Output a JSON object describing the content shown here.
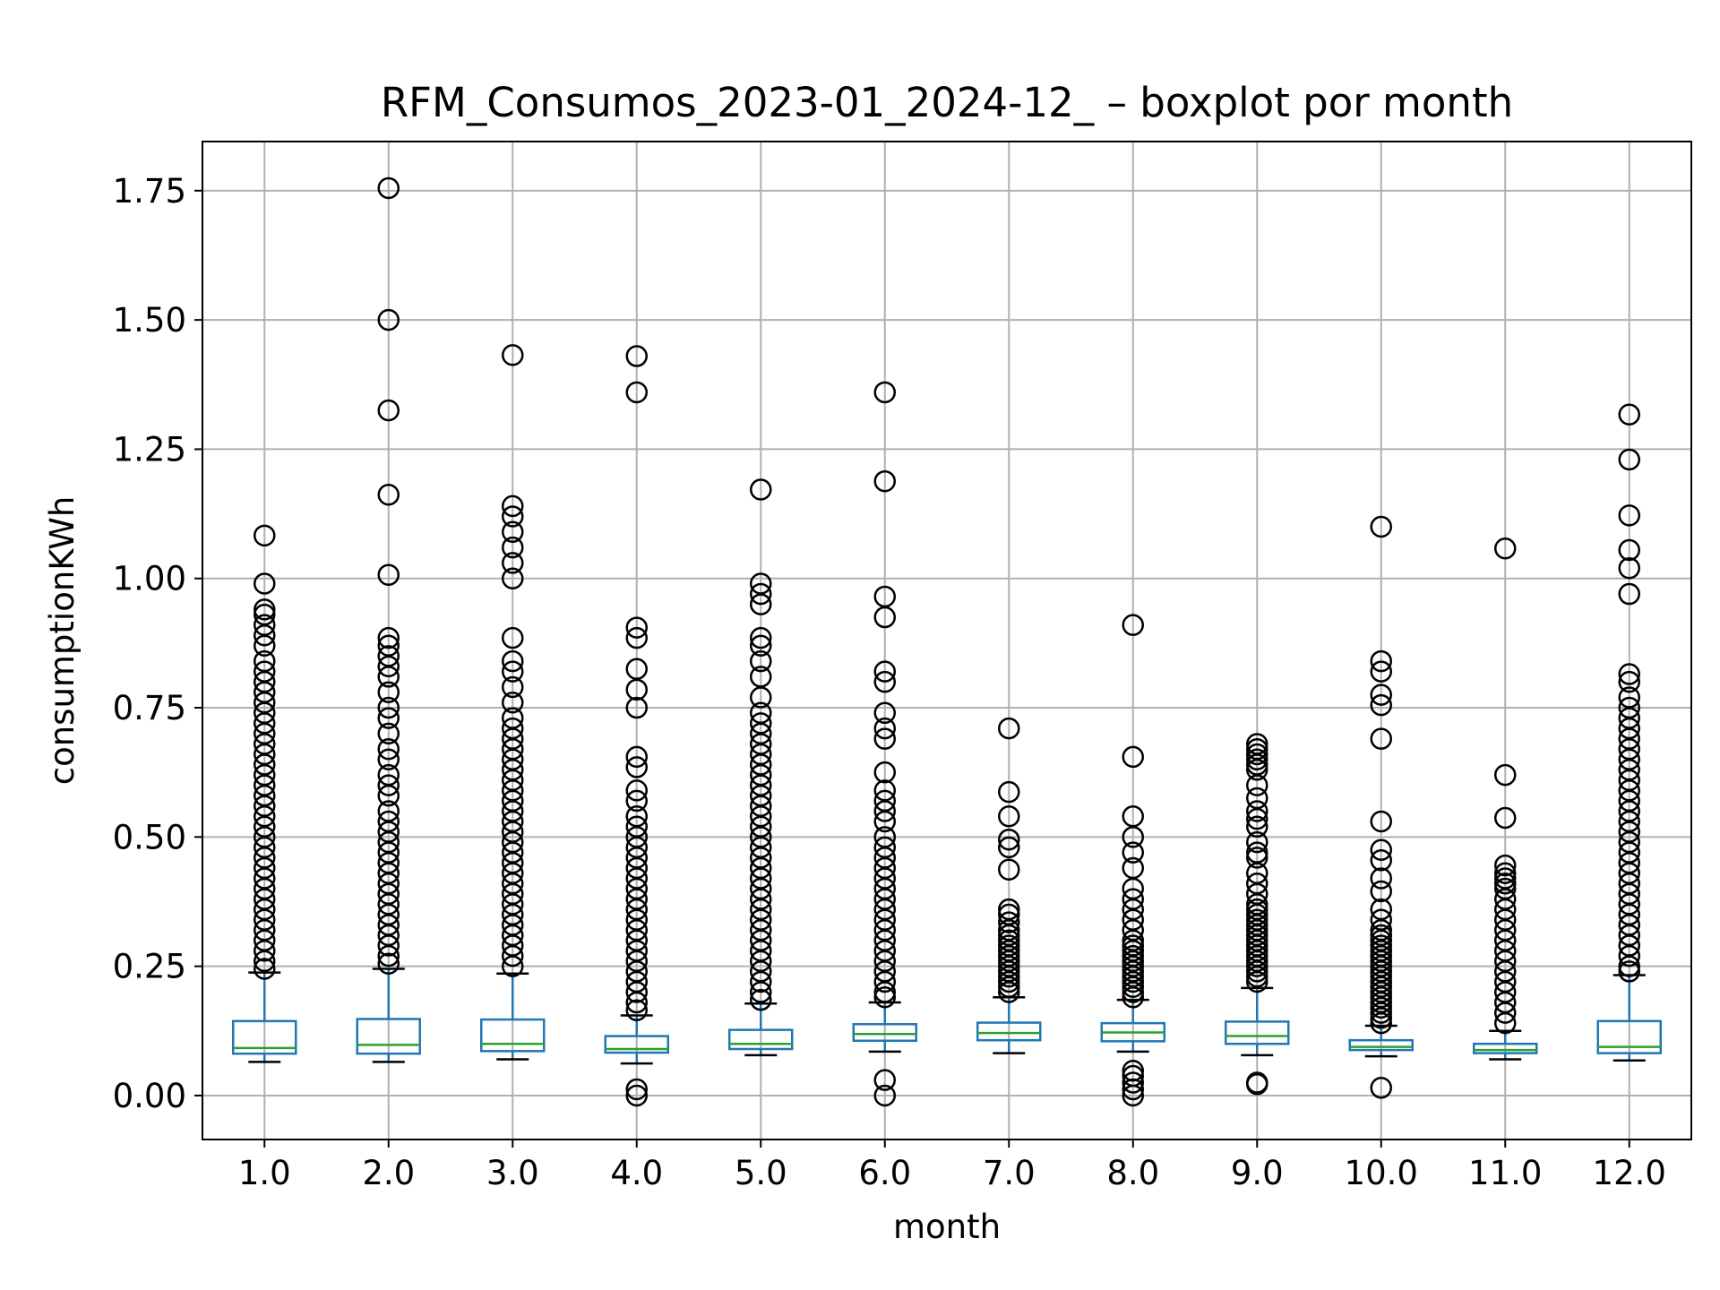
{
  "chart_data": {
    "type": "boxplot",
    "title": "RFM_Consumos_2023-01_2024-12_ – boxplot por month",
    "xlabel": "month",
    "ylabel": "consumptionKWh",
    "categories": [
      "1.0",
      "2.0",
      "3.0",
      "4.0",
      "5.0",
      "6.0",
      "7.0",
      "8.0",
      "9.0",
      "10.0",
      "11.0",
      "12.0"
    ],
    "ylim": [
      -0.085,
      1.845
    ],
    "yticks": [
      0.0,
      0.25,
      0.5,
      0.75,
      1.0,
      1.25,
      1.5,
      1.75
    ],
    "ytick_labels": [
      "0.00",
      "0.25",
      "0.50",
      "0.75",
      "1.00",
      "1.25",
      "1.50",
      "1.75"
    ],
    "grid": true,
    "colors": {
      "box": "#1f77b4",
      "median": "#2ca02c",
      "whisker": "#1f77b4",
      "cap": "#000000",
      "flier": "#000000",
      "grid": "#b0b0b0"
    },
    "boxes": [
      {
        "category": "1.0",
        "whislo": 0.065,
        "q1": 0.081,
        "med": 0.092,
        "q3": 0.144,
        "whishi": 0.238,
        "fliers": [
          1.083,
          0.99,
          0.94,
          0.93,
          0.91,
          0.89,
          0.87,
          0.84,
          0.82,
          0.8,
          0.78,
          0.76,
          0.74,
          0.72,
          0.7,
          0.68,
          0.66,
          0.64,
          0.62,
          0.6,
          0.58,
          0.56,
          0.54,
          0.52,
          0.5,
          0.48,
          0.46,
          0.44,
          0.42,
          0.4,
          0.38,
          0.36,
          0.34,
          0.32,
          0.3,
          0.28,
          0.26,
          0.245
        ]
      },
      {
        "category": "2.0",
        "whislo": 0.065,
        "q1": 0.081,
        "med": 0.098,
        "q3": 0.148,
        "whishi": 0.245,
        "fliers": [
          1.755,
          1.5,
          1.325,
          1.162,
          1.007,
          0.885,
          0.87,
          0.85,
          0.83,
          0.81,
          0.78,
          0.75,
          0.73,
          0.7,
          0.67,
          0.65,
          0.62,
          0.6,
          0.58,
          0.55,
          0.53,
          0.51,
          0.49,
          0.47,
          0.45,
          0.43,
          0.41,
          0.39,
          0.37,
          0.35,
          0.33,
          0.31,
          0.29,
          0.27,
          0.255
        ]
      },
      {
        "category": "3.0",
        "whislo": 0.07,
        "q1": 0.086,
        "med": 0.1,
        "q3": 0.147,
        "whishi": 0.236,
        "fliers": [
          1.432,
          1.14,
          1.12,
          1.09,
          1.06,
          1.03,
          1.0,
          0.885,
          0.84,
          0.82,
          0.79,
          0.76,
          0.73,
          0.71,
          0.69,
          0.67,
          0.65,
          0.63,
          0.61,
          0.59,
          0.57,
          0.55,
          0.53,
          0.51,
          0.49,
          0.47,
          0.45,
          0.43,
          0.41,
          0.39,
          0.37,
          0.35,
          0.33,
          0.31,
          0.29,
          0.27,
          0.25
        ]
      },
      {
        "category": "4.0",
        "whislo": 0.062,
        "q1": 0.083,
        "med": 0.09,
        "q3": 0.115,
        "whishi": 0.155,
        "fliers": [
          1.43,
          1.36,
          0.905,
          0.885,
          0.825,
          0.785,
          0.75,
          0.655,
          0.635,
          0.59,
          0.57,
          0.54,
          0.52,
          0.5,
          0.48,
          0.46,
          0.44,
          0.42,
          0.4,
          0.38,
          0.36,
          0.34,
          0.32,
          0.3,
          0.28,
          0.26,
          0.24,
          0.22,
          0.2,
          0.18,
          0.165,
          0.012,
          0.0
        ]
      },
      {
        "category": "5.0",
        "whislo": 0.078,
        "q1": 0.09,
        "med": 0.1,
        "q3": 0.127,
        "whishi": 0.178,
        "fliers": [
          1.172,
          0.99,
          0.97,
          0.95,
          0.885,
          0.87,
          0.84,
          0.81,
          0.77,
          0.74,
          0.72,
          0.7,
          0.68,
          0.66,
          0.64,
          0.62,
          0.6,
          0.58,
          0.56,
          0.54,
          0.52,
          0.5,
          0.48,
          0.46,
          0.44,
          0.42,
          0.4,
          0.38,
          0.36,
          0.34,
          0.32,
          0.3,
          0.28,
          0.26,
          0.24,
          0.22,
          0.2,
          0.185
        ]
      },
      {
        "category": "6.0",
        "whislo": 0.085,
        "q1": 0.106,
        "med": 0.119,
        "q3": 0.138,
        "whishi": 0.18,
        "fliers": [
          1.36,
          1.188,
          0.965,
          0.925,
          0.82,
          0.8,
          0.74,
          0.71,
          0.69,
          0.625,
          0.59,
          0.57,
          0.55,
          0.53,
          0.5,
          0.48,
          0.46,
          0.44,
          0.42,
          0.4,
          0.38,
          0.36,
          0.34,
          0.32,
          0.3,
          0.28,
          0.26,
          0.24,
          0.22,
          0.2,
          0.19,
          0.03,
          0.0
        ]
      },
      {
        "category": "7.0",
        "whislo": 0.082,
        "q1": 0.107,
        "med": 0.121,
        "q3": 0.141,
        "whishi": 0.19,
        "fliers": [
          0.71,
          0.587,
          0.54,
          0.495,
          0.48,
          0.437,
          0.36,
          0.35,
          0.335,
          0.32,
          0.31,
          0.3,
          0.29,
          0.28,
          0.27,
          0.26,
          0.25,
          0.24,
          0.23,
          0.22,
          0.21,
          0.2
        ]
      },
      {
        "category": "8.0",
        "whislo": 0.085,
        "q1": 0.105,
        "med": 0.122,
        "q3": 0.14,
        "whishi": 0.185,
        "fliers": [
          0.91,
          0.655,
          0.54,
          0.5,
          0.47,
          0.44,
          0.4,
          0.38,
          0.36,
          0.34,
          0.32,
          0.3,
          0.29,
          0.28,
          0.27,
          0.26,
          0.25,
          0.24,
          0.23,
          0.22,
          0.21,
          0.2,
          0.19,
          0.048,
          0.038,
          0.025,
          0.012,
          0.0
        ]
      },
      {
        "category": "9.0",
        "whislo": 0.078,
        "q1": 0.1,
        "med": 0.115,
        "q3": 0.143,
        "whishi": 0.208,
        "fliers": [
          0.68,
          0.67,
          0.66,
          0.65,
          0.64,
          0.63,
          0.6,
          0.575,
          0.55,
          0.535,
          0.52,
          0.49,
          0.47,
          0.46,
          0.43,
          0.41,
          0.39,
          0.37,
          0.36,
          0.35,
          0.34,
          0.33,
          0.32,
          0.31,
          0.3,
          0.29,
          0.28,
          0.27,
          0.26,
          0.25,
          0.24,
          0.23,
          0.22,
          0.025,
          0.022
        ]
      },
      {
        "category": "10.0",
        "whislo": 0.076,
        "q1": 0.088,
        "med": 0.094,
        "q3": 0.107,
        "whishi": 0.135,
        "fliers": [
          1.1,
          0.84,
          0.82,
          0.775,
          0.755,
          0.69,
          0.53,
          0.475,
          0.455,
          0.42,
          0.395,
          0.36,
          0.34,
          0.32,
          0.31,
          0.3,
          0.29,
          0.28,
          0.27,
          0.26,
          0.25,
          0.24,
          0.23,
          0.22,
          0.21,
          0.2,
          0.19,
          0.18,
          0.17,
          0.16,
          0.15,
          0.14,
          0.015
        ]
      },
      {
        "category": "11.0",
        "whislo": 0.07,
        "q1": 0.082,
        "med": 0.088,
        "q3": 0.1,
        "whishi": 0.125,
        "fliers": [
          1.058,
          0.62,
          0.537,
          0.445,
          0.43,
          0.42,
          0.41,
          0.4,
          0.38,
          0.36,
          0.34,
          0.32,
          0.3,
          0.28,
          0.26,
          0.24,
          0.22,
          0.2,
          0.18,
          0.16,
          0.14
        ]
      },
      {
        "category": "12.0",
        "whislo": 0.068,
        "q1": 0.082,
        "med": 0.094,
        "q3": 0.144,
        "whishi": 0.233,
        "fliers": [
          1.317,
          1.23,
          1.122,
          1.055,
          1.02,
          0.97,
          0.815,
          0.8,
          0.77,
          0.75,
          0.73,
          0.71,
          0.69,
          0.67,
          0.65,
          0.63,
          0.61,
          0.59,
          0.57,
          0.55,
          0.53,
          0.51,
          0.49,
          0.47,
          0.45,
          0.43,
          0.41,
          0.39,
          0.37,
          0.35,
          0.33,
          0.31,
          0.29,
          0.27,
          0.25,
          0.24
        ]
      }
    ]
  }
}
